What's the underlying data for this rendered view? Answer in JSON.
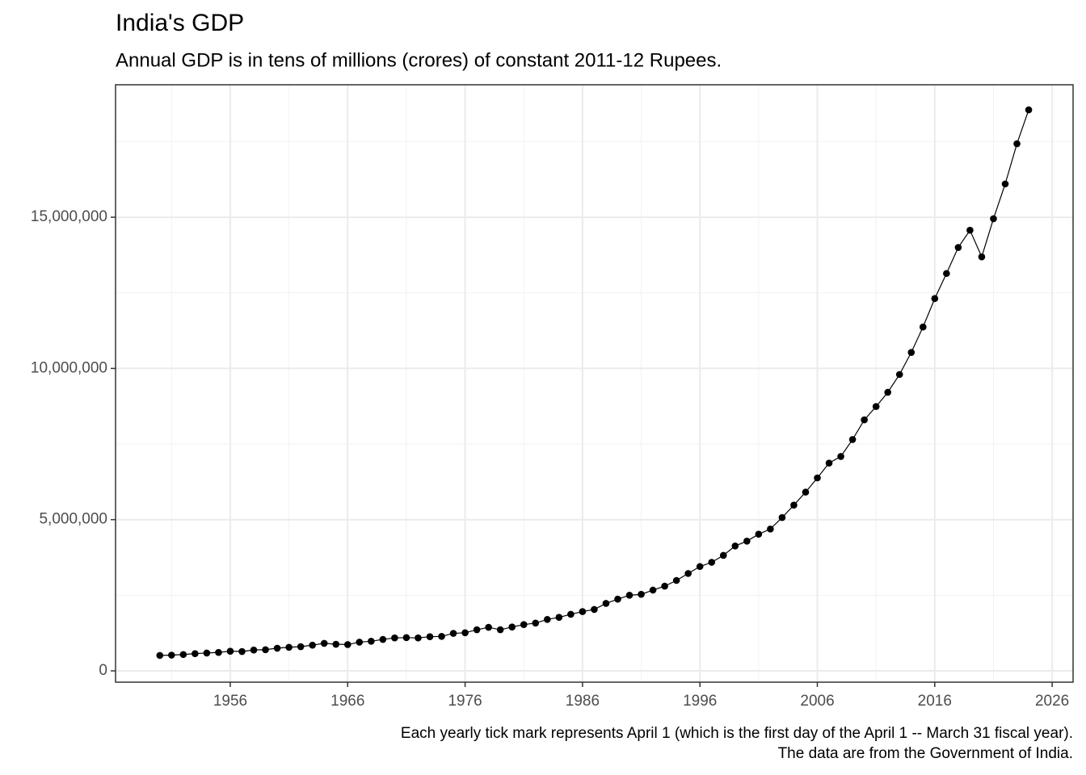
{
  "chart_data": {
    "type": "line",
    "title": "India's GDP",
    "subtitle": "Annual GDP is in tens of millions (crores) of constant 2011-12 Rupees.",
    "caption": [
      "Each yearly tick mark represents April 1 (which is the first day of the April 1 -- March 31 fiscal year).",
      "The data are from the Government of India."
    ],
    "x": [
      1950,
      1951,
      1952,
      1953,
      1954,
      1955,
      1956,
      1957,
      1958,
      1959,
      1960,
      1961,
      1962,
      1963,
      1964,
      1965,
      1966,
      1967,
      1968,
      1969,
      1970,
      1971,
      1972,
      1973,
      1974,
      1975,
      1976,
      1977,
      1978,
      1979,
      1980,
      1981,
      1982,
      1983,
      1984,
      1985,
      1986,
      1987,
      1988,
      1989,
      1990,
      1991,
      1992,
      1993,
      1994,
      1995,
      1996,
      1997,
      1998,
      1999,
      2000,
      2001,
      2002,
      2003,
      2004,
      2005,
      2006,
      2007,
      2008,
      2009,
      2010,
      2011,
      2012,
      2013,
      2014,
      2015,
      2016,
      2017,
      2018,
      2019,
      2020,
      2021,
      2022,
      2023,
      2024
    ],
    "series": [
      {
        "name": "GDP",
        "color": "#000000",
        "values": [
          510000,
          520000,
          540000,
          570000,
          590000,
          610000,
          650000,
          640000,
          690000,
          700000,
          750000,
          780000,
          800000,
          850000,
          910000,
          880000,
          870000,
          950000,
          980000,
          1040000,
          1090000,
          1100000,
          1090000,
          1130000,
          1140000,
          1240000,
          1260000,
          1360000,
          1440000,
          1360000,
          1450000,
          1530000,
          1580000,
          1700000,
          1770000,
          1870000,
          1960000,
          2030000,
          2230000,
          2370000,
          2500000,
          2530000,
          2670000,
          2800000,
          2990000,
          3220000,
          3450000,
          3590000,
          3820000,
          4130000,
          4290000,
          4520000,
          4690000,
          5070000,
          5480000,
          5910000,
          6380000,
          6870000,
          7090000,
          7650000,
          8300000,
          8740000,
          9210000,
          9800000,
          10530000,
          11370000,
          12310000,
          13140000,
          14000000,
          14570000,
          13690000,
          14950000,
          16100000,
          17430000,
          18550000
        ]
      }
    ],
    "xlim": [
      1946.23,
      2027.78
    ],
    "ylim": [
      -373700,
      19380000
    ],
    "xticks": [
      1956,
      1966,
      1976,
      1986,
      1996,
      2006,
      2016,
      2026
    ],
    "xminor": [
      1951,
      1961,
      1971,
      1981,
      1991,
      2001,
      2011,
      2021
    ],
    "yticks": [
      0,
      {
        "value": 5000000,
        "label": "5,000,000"
      },
      {
        "value": 10000000,
        "label": "10,000,000"
      },
      {
        "value": 15000000,
        "label": "15,000,000"
      }
    ],
    "yminor": [
      2500000,
      7500000,
      12500000,
      17500000
    ],
    "grid": true
  }
}
